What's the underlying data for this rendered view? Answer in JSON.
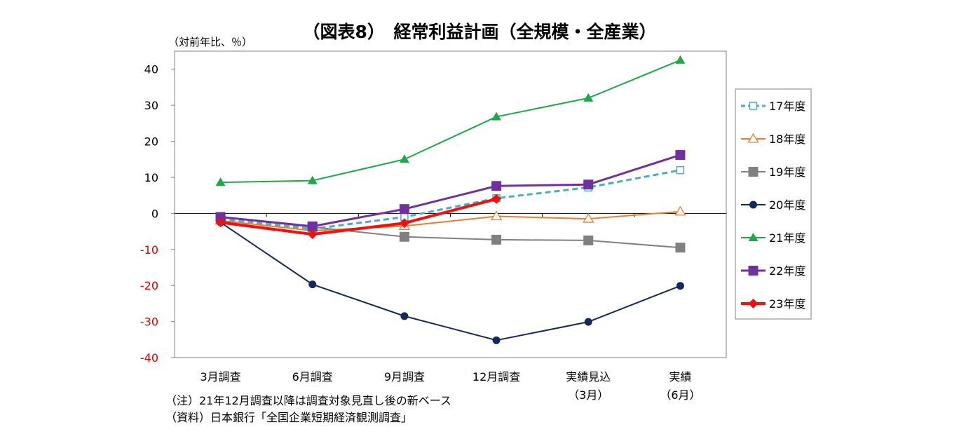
{
  "chart_data": {
    "type": "line",
    "title": "（図表8）　経常利益計画（全規模・全産業）",
    "ylabel": "（対前年比、％）",
    "ylim": [
      -40,
      45
    ],
    "yticks": [
      40,
      30,
      20,
      10,
      0,
      -10,
      -20,
      -30,
      -40
    ],
    "negative_tick_color": "#e00000",
    "grid": false,
    "legend_position": "right",
    "categories": [
      [
        "3月調査"
      ],
      [
        "6月調査"
      ],
      [
        "9月調査"
      ],
      [
        "12月調査"
      ],
      [
        "実績見込",
        "（3月）"
      ],
      [
        "実績",
        "（6月）"
      ]
    ],
    "series": [
      {
        "name": "17年度",
        "color": "#4bacc6",
        "dash": true,
        "marker": "square-open",
        "width": 3,
        "values": [
          -1.5,
          -4.3,
          -1.0,
          4.2,
          7.2,
          12.0
        ]
      },
      {
        "name": "18年度",
        "color": "#e97d33",
        "dash": false,
        "marker": "triangle-open",
        "width": 2,
        "values": [
          -2.0,
          -4.8,
          -3.5,
          -0.8,
          -1.5,
          0.5
        ]
      },
      {
        "name": "19年度",
        "color": "#808080",
        "dash": false,
        "marker": "square",
        "width": 2,
        "values": [
          -1.0,
          -3.8,
          -6.5,
          -7.3,
          -7.5,
          -9.5
        ]
      },
      {
        "name": "20年度",
        "color": "#14285a",
        "dash": false,
        "marker": "circle",
        "width": 2,
        "values": [
          -2.5,
          -19.7,
          -28.5,
          -35.2,
          -30.1,
          -20.1
        ]
      },
      {
        "name": "21年度",
        "color": "#1fa84a",
        "dash": false,
        "marker": "triangle",
        "width": 2,
        "values": [
          8.6,
          9.1,
          15.0,
          26.8,
          32.0,
          42.5
        ]
      },
      {
        "name": "22年度",
        "color": "#7030a0",
        "dash": false,
        "marker": "square",
        "width": 3,
        "values": [
          -1.0,
          -3.6,
          1.2,
          7.6,
          8.0,
          16.2
        ]
      },
      {
        "name": "23年度",
        "color": "#ee1111",
        "dash": false,
        "marker": "diamond",
        "width": 4,
        "values": [
          -2.5,
          -5.8,
          -2.7,
          4.0,
          null,
          null
        ]
      }
    ]
  },
  "notes": {
    "line1": "（注）21年12月調査以降は調査対象見直し後の新ベース",
    "line2": "（資料）日本銀行「全国企業短期経済観測調査」"
  }
}
